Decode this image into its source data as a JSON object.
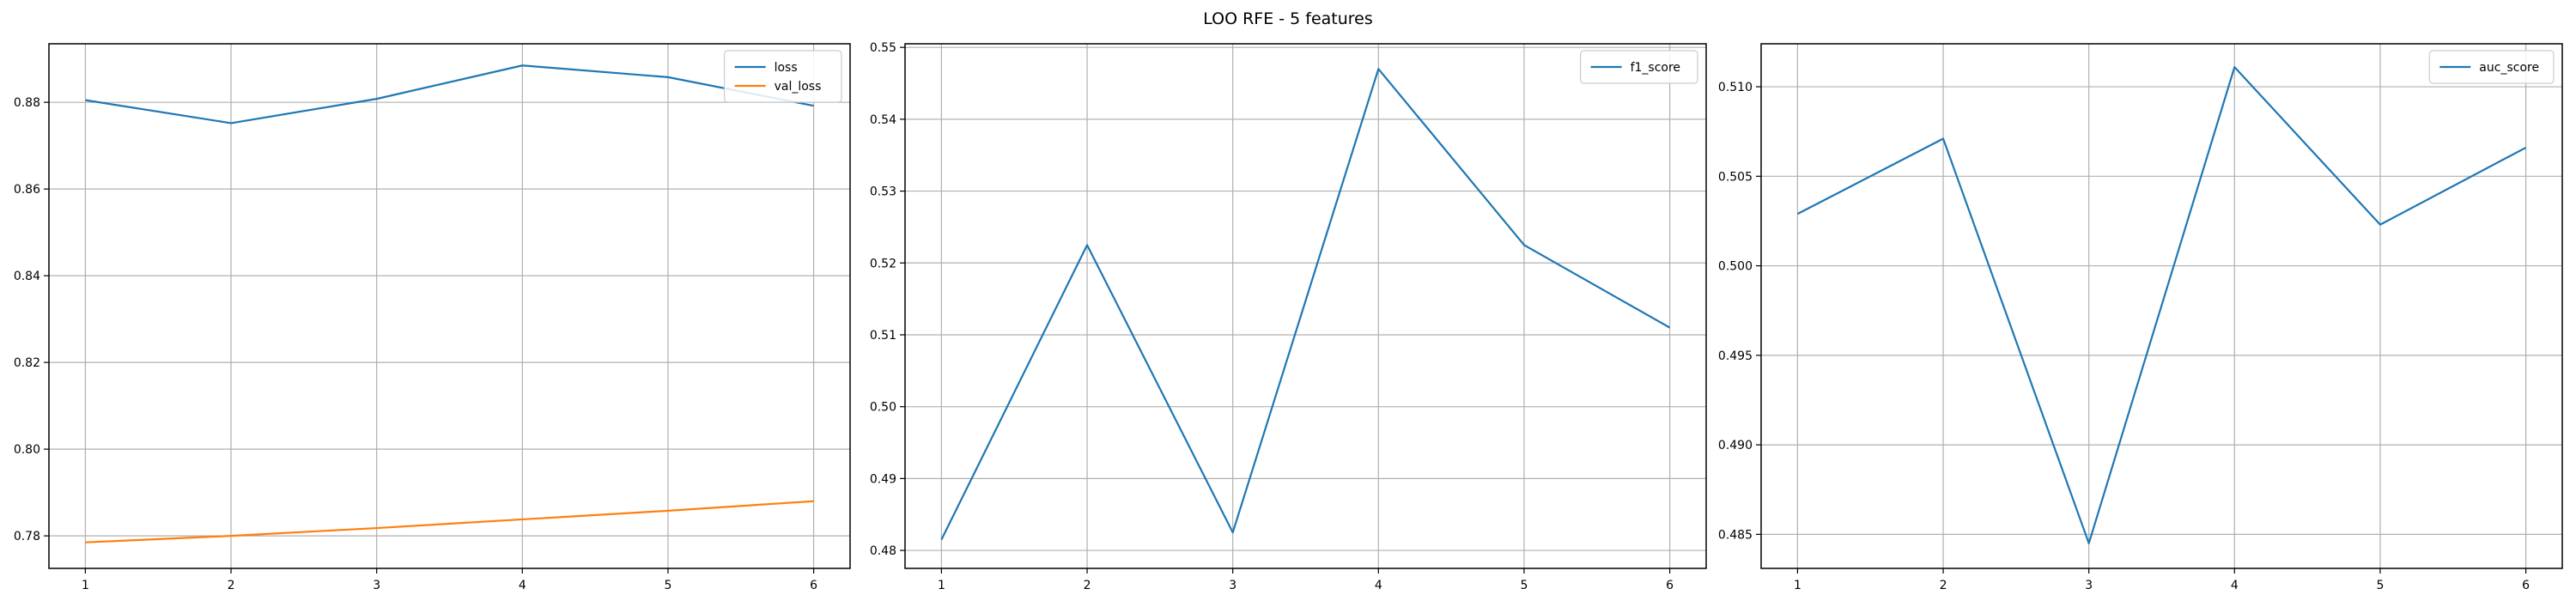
{
  "figure": {
    "title": "LOO RFE - 5 features"
  },
  "chart_data": [
    {
      "type": "line",
      "title": "",
      "xlabel": "",
      "ylabel": "",
      "x": [
        1,
        2,
        3,
        4,
        5,
        6
      ],
      "xlim": [
        0.75,
        6.25
      ],
      "ylim": [
        0.7725,
        0.8935
      ],
      "xticks": [
        "1",
        "2",
        "3",
        "4",
        "5",
        "6"
      ],
      "yticks": [
        0.78,
        0.8,
        0.82,
        0.84,
        0.86,
        0.88
      ],
      "ytick_labels": [
        "0.78",
        "0.80",
        "0.82",
        "0.84",
        "0.86",
        "0.88"
      ],
      "grid": true,
      "legend_position": "top-right",
      "series": [
        {
          "name": "loss",
          "color": "#1f77b4",
          "values": [
            0.8805,
            0.8752,
            0.8808,
            0.8885,
            0.8858,
            0.8792
          ]
        },
        {
          "name": "val_loss",
          "color": "#ff7f0e",
          "values": [
            0.7785,
            0.78,
            0.7818,
            0.7838,
            0.7858,
            0.788
          ]
        }
      ]
    },
    {
      "type": "line",
      "title": "",
      "xlabel": "",
      "ylabel": "",
      "x": [
        1,
        2,
        3,
        4,
        5,
        6
      ],
      "xlim": [
        0.75,
        6.25
      ],
      "ylim": [
        0.4775,
        0.5505
      ],
      "xticks": [
        "1",
        "2",
        "3",
        "4",
        "5",
        "6"
      ],
      "yticks": [
        0.48,
        0.49,
        0.5,
        0.51,
        0.52,
        0.53,
        0.54,
        0.55
      ],
      "ytick_labels": [
        "0.48",
        "0.49",
        "0.50",
        "0.51",
        "0.52",
        "0.53",
        "0.54",
        "0.55"
      ],
      "grid": true,
      "legend_position": "top-right",
      "series": [
        {
          "name": "f1_score",
          "color": "#1f77b4",
          "values": [
            0.4815,
            0.5225,
            0.4825,
            0.547,
            0.5225,
            0.511
          ]
        }
      ]
    },
    {
      "type": "line",
      "title": "",
      "xlabel": "",
      "ylabel": "",
      "x": [
        1,
        2,
        3,
        4,
        5,
        6
      ],
      "xlim": [
        0.75,
        6.25
      ],
      "ylim": [
        0.4831,
        0.5124
      ],
      "xticks": [
        "1",
        "2",
        "3",
        "4",
        "5",
        "6"
      ],
      "yticks": [
        0.485,
        0.49,
        0.495,
        0.5,
        0.505,
        0.51
      ],
      "ytick_labels": [
        "0.485",
        "0.490",
        "0.495",
        "0.500",
        "0.505",
        "0.510"
      ],
      "grid": true,
      "legend_position": "top-right",
      "series": [
        {
          "name": "auc_score",
          "color": "#1f77b4",
          "values": [
            0.5029,
            0.5071,
            0.4845,
            0.5111,
            0.5023,
            0.5066
          ]
        }
      ]
    }
  ]
}
